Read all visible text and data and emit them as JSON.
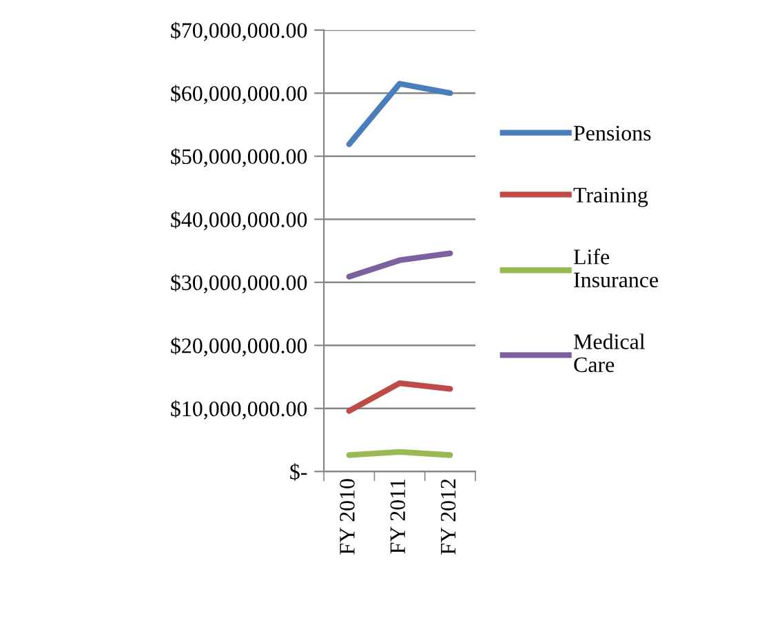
{
  "chart_data": {
    "type": "line",
    "categories": [
      "FY 2010",
      "FY 2011",
      "FY 2012"
    ],
    "series": [
      {
        "name": "Pensions",
        "color": "#4a7ebb",
        "values": [
          51900000,
          61500000,
          60000000
        ]
      },
      {
        "name": "Training",
        "color": "#be4b48",
        "values": [
          9600000,
          14000000,
          13100000
        ]
      },
      {
        "name": "Life Insurance",
        "color": "#98b954",
        "values": [
          2600000,
          3100000,
          2600000
        ]
      },
      {
        "name": "Medical Care",
        "color": "#7d60a0",
        "values": [
          30900000,
          33500000,
          34600000
        ]
      }
    ],
    "ylim": [
      0,
      70000000
    ],
    "yticks": [
      {
        "value": 0,
        "label": "$-"
      },
      {
        "value": 10000000,
        "label": "$10,000,000.00"
      },
      {
        "value": 20000000,
        "label": "$20,000,000.00"
      },
      {
        "value": 30000000,
        "label": "$30,000,000.00"
      },
      {
        "value": 40000000,
        "label": "$40,000,000.00"
      },
      {
        "value": 50000000,
        "label": "$50,000,000.00"
      },
      {
        "value": 60000000,
        "label": "$60,000,000.00"
      },
      {
        "value": 70000000,
        "label": "$70,000,000.00"
      }
    ],
    "grid": "y",
    "legend": "right",
    "marker": "none",
    "line_style": "solid"
  }
}
